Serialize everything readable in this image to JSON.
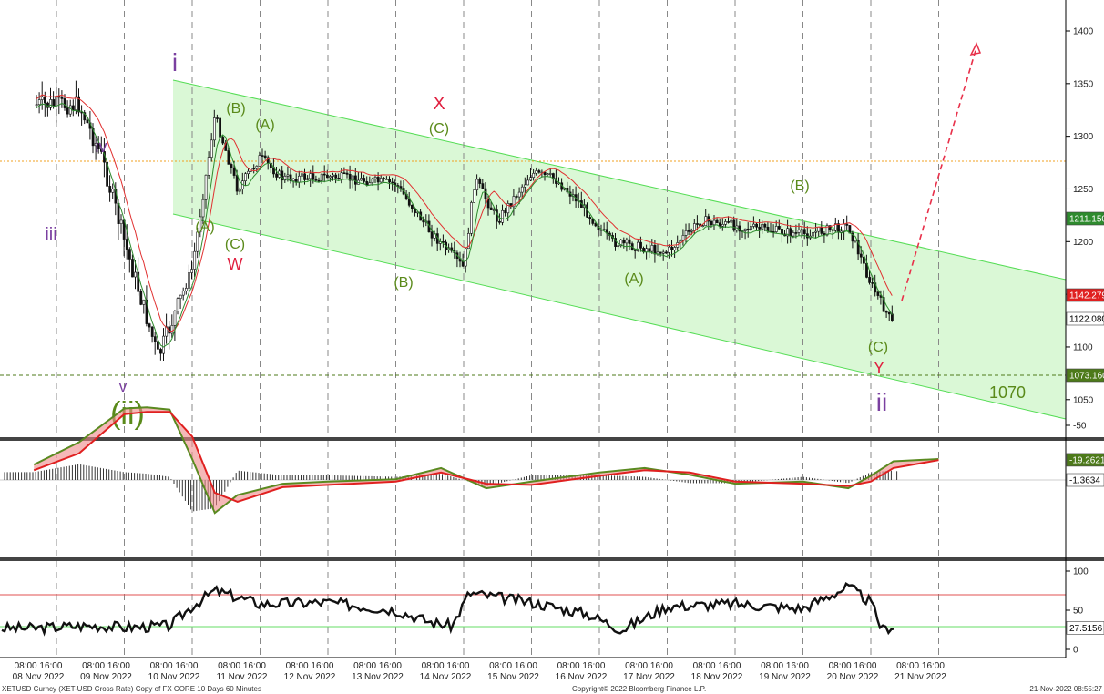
{
  "footer": {
    "left": "XETUSD Curncy (XET-USD Cross Rate) Copy of FX CORE 10 Days 60 Minutes",
    "center": "Copyright© 2022 Bloomberg Finance L.P.",
    "right": "21-Nov-2022 08:55:27"
  },
  "x_axis": {
    "time_labels": [
      "08:00 16:00",
      "08:00 16:00",
      "08:00 16:00",
      "08:00 16:00",
      "08:00 16:00",
      "08:00 16:00",
      "08:00 16:00",
      "08:00 16:00",
      "08:00 16:00",
      "08:00 16:00",
      "08:00 16:00",
      "08:00 16:00",
      "08:00 16:00",
      "08:00 16:00"
    ],
    "date_labels": [
      "08 Nov 2022",
      "09 Nov 2022",
      "10 Nov 2022",
      "11 Nov 2022",
      "12 Nov 2022",
      "13 Nov 2022",
      "14 Nov 2022",
      "15 Nov 2022",
      "16 Nov 2022",
      "17 Nov 2022",
      "18 Nov 2022",
      "19 Nov 2022",
      "20 Nov 2022",
      "21 Nov 2022"
    ]
  },
  "colors": {
    "channel_fill": "#d6f7d2",
    "channel_line": "#55dd55",
    "candle": "#111111",
    "ma_red": "#e03030",
    "ma_green": "#2e8b2e",
    "orange_level": "#f0a020",
    "support_level": "#4d7a1a",
    "wave_purple": "#7a3fa0",
    "wave_green": "#5a8a1a",
    "wave_red": "#e02040",
    "arrow": "#e8304a",
    "macd_red": "#e02020",
    "macd_green": "#5a8a20",
    "rsi_line": "#111111",
    "rsi_upper": "#e05050",
    "rsi_lower": "#66dd66"
  },
  "chart_data": [
    {
      "panel": "price",
      "type": "candlestick",
      "y_ticks": [
        1050,
        1100,
        1150,
        1200,
        1250,
        1300,
        1350,
        1400
      ],
      "ylim": [
        1015,
        1440
      ],
      "grid": "vertical dashed at 08:00 each day",
      "close_path": [
        {
          "x": "08 Nov 16:00",
          "y": 1330
        },
        {
          "x": "09 Nov 00:00",
          "y": 1280
        },
        {
          "x": "09 Nov 08:00",
          "y": 1200
        },
        {
          "x": "09 Nov 20:00",
          "y": 1090
        },
        {
          "x": "10 Nov 08:00",
          "y": 1175
        },
        {
          "x": "10 Nov 16:00",
          "y": 1320
        },
        {
          "x": "11 Nov 00:00",
          "y": 1250
        },
        {
          "x": "11 Nov 08:00",
          "y": 1280
        },
        {
          "x": "11 Nov 16:00",
          "y": 1260
        },
        {
          "x": "12 Nov 08:00",
          "y": 1262
        },
        {
          "x": "13 Nov 08:00",
          "y": 1255
        },
        {
          "x": "13 Nov 20:00",
          "y": 1210
        },
        {
          "x": "14 Nov 08:00",
          "y": 1175
        },
        {
          "x": "14 Nov 12:00",
          "y": 1260
        },
        {
          "x": "14 Nov 20:00",
          "y": 1220
        },
        {
          "x": "15 Nov 08:00",
          "y": 1265
        },
        {
          "x": "15 Nov 16:00",
          "y": 1260
        },
        {
          "x": "16 Nov 00:00",
          "y": 1240
        },
        {
          "x": "16 Nov 12:00",
          "y": 1200
        },
        {
          "x": "17 Nov 08:00",
          "y": 1190
        },
        {
          "x": "17 Nov 20:00",
          "y": 1220
        },
        {
          "x": "18 Nov 08:00",
          "y": 1215
        },
        {
          "x": "19 Nov 08:00",
          "y": 1207
        },
        {
          "x": "20 Nov 00:00",
          "y": 1215
        },
        {
          "x": "20 Nov 08:00",
          "y": 1160
        },
        {
          "x": "20 Nov 16:00",
          "y": 1120
        },
        {
          "x": "21 Nov 08:00",
          "y": 1122
        }
      ],
      "channel": {
        "upper": {
          "from": {
            "x": "10 Nov 16:00",
            "y": 1350
          },
          "to": {
            "x": "21 Nov 16:00",
            "y": 1155
          }
        },
        "lower": {
          "from": {
            "x": "10 Nov 16:00",
            "y": 1215
          },
          "to": {
            "x": "21 Nov 16:00",
            "y": 1035
          }
        }
      },
      "horizontal_levels": [
        {
          "y": 1268,
          "style": "dotted",
          "color": "orange"
        },
        {
          "y": 1073.16,
          "style": "dashed",
          "color": "green",
          "label": "1070"
        }
      ],
      "projection_arrow": {
        "from": {
          "x": "21 Nov 08:00",
          "y": 1140
        },
        "to": {
          "x": "21 Nov 16:00",
          "y": 1390
        }
      },
      "value_tags": [
        {
          "text": "1211.150",
          "y": 1211.15,
          "bg": "#2e8b2e",
          "fg": "#ffffff"
        },
        {
          "text": "1142.279",
          "y": 1142.279,
          "bg": "#e02020",
          "fg": "#ffffff"
        },
        {
          "text": "1122.080",
          "y": 1122.08,
          "bg": "#ffffff",
          "fg": "#000000"
        },
        {
          "text": "1073.160",
          "y": 1073.16,
          "bg": "#4d7a1a",
          "fg": "#ffffff"
        }
      ],
      "annotations": [
        {
          "text": "i",
          "color": "purple",
          "size": "large"
        },
        {
          "text": "iii",
          "color": "purple",
          "size": "medium"
        },
        {
          "text": "iv",
          "color": "purple",
          "size": "medium"
        },
        {
          "text": "v",
          "color": "purple",
          "size": "medium"
        },
        {
          "text": "(ii)",
          "color": "green",
          "size": "xlarge"
        },
        {
          "text": "(B)",
          "color": "green",
          "size": "medium"
        },
        {
          "text": "(A)",
          "color": "green",
          "size": "medium"
        },
        {
          "text": "(A)",
          "color": "green",
          "size": "medium"
        },
        {
          "text": "(C)",
          "color": "green",
          "size": "medium"
        },
        {
          "text": "W",
          "color": "red",
          "size": "medium"
        },
        {
          "text": "X",
          "color": "red",
          "size": "medium"
        },
        {
          "text": "(C)",
          "color": "green",
          "size": "medium"
        },
        {
          "text": "(B)",
          "color": "green",
          "size": "medium"
        },
        {
          "text": "(A)",
          "color": "green",
          "size": "medium"
        },
        {
          "text": "(B)",
          "color": "green",
          "size": "medium"
        },
        {
          "text": "(C)",
          "color": "green",
          "size": "medium"
        },
        {
          "text": "Y",
          "color": "red",
          "size": "medium"
        },
        {
          "text": "ii",
          "color": "purple",
          "size": "large"
        },
        {
          "text": "1070",
          "color": "green",
          "size": "large"
        }
      ]
    },
    {
      "panel": "macd",
      "type": "line",
      "y_ticks": [
        -50
      ],
      "ylim": [
        -90,
        45
      ],
      "series": [
        {
          "color": "red",
          "points": [
            {
              "x": "08 Nov 00:00",
              "y": -10
            },
            {
              "x": "08 Nov 16:00",
              "y": -25
            },
            {
              "x": "09 Nov 08:00",
              "y": -60
            },
            {
              "x": "09 Nov 16:00",
              "y": -62
            },
            {
              "x": "10 Nov 00:00",
              "y": -62
            },
            {
              "x": "10 Nov 08:00",
              "y": -40
            },
            {
              "x": "10 Nov 16:00",
              "y": 10
            },
            {
              "x": "11 Nov 00:00",
              "y": 18
            },
            {
              "x": "11 Nov 16:00",
              "y": 5
            },
            {
              "x": "12 Nov 08:00",
              "y": 3
            },
            {
              "x": "13 Nov 08:00",
              "y": 0
            },
            {
              "x": "14 Nov 00:00",
              "y": -8
            },
            {
              "x": "14 Nov 16:00",
              "y": 2
            },
            {
              "x": "15 Nov 08:00",
              "y": 3
            },
            {
              "x": "16 Nov 08:00",
              "y": -5
            },
            {
              "x": "17 Nov 00:00",
              "y": -10
            },
            {
              "x": "17 Nov 16:00",
              "y": -8
            },
            {
              "x": "18 Nov 08:00",
              "y": 0
            },
            {
              "x": "19 Nov 08:00",
              "y": 2
            },
            {
              "x": "20 Nov 00:00",
              "y": 4
            },
            {
              "x": "20 Nov 08:00",
              "y": 0
            },
            {
              "x": "20 Nov 16:00",
              "y": -12
            },
            {
              "x": "21 Nov 08:00",
              "y": -19
            }
          ]
        },
        {
          "color": "green",
          "points": [
            {
              "x": "08 Nov 00:00",
              "y": -15
            },
            {
              "x": "08 Nov 16:00",
              "y": -35
            },
            {
              "x": "09 Nov 08:00",
              "y": -65
            },
            {
              "x": "09 Nov 16:00",
              "y": -66
            },
            {
              "x": "10 Nov 00:00",
              "y": -64
            },
            {
              "x": "10 Nov 08:00",
              "y": -20
            },
            {
              "x": "10 Nov 16:00",
              "y": 28
            },
            {
              "x": "11 Nov 00:00",
              "y": 12
            },
            {
              "x": "11 Nov 16:00",
              "y": 2
            },
            {
              "x": "12 Nov 08:00",
              "y": 0
            },
            {
              "x": "13 Nov 08:00",
              "y": -2
            },
            {
              "x": "14 Nov 00:00",
              "y": -12
            },
            {
              "x": "14 Nov 16:00",
              "y": 6
            },
            {
              "x": "15 Nov 08:00",
              "y": 0
            },
            {
              "x": "16 Nov 08:00",
              "y": -8
            },
            {
              "x": "17 Nov 00:00",
              "y": -12
            },
            {
              "x": "17 Nov 16:00",
              "y": -6
            },
            {
              "x": "18 Nov 08:00",
              "y": 2
            },
            {
              "x": "19 Nov 08:00",
              "y": 0
            },
            {
              "x": "20 Nov 00:00",
              "y": 6
            },
            {
              "x": "20 Nov 08:00",
              "y": -5
            },
            {
              "x": "20 Nov 16:00",
              "y": -18
            },
            {
              "x": "21 Nov 08:00",
              "y": -20
            }
          ]
        }
      ],
      "value_tags": [
        {
          "text": "-1.3634",
          "y": -1.3634,
          "bg": "#ffffff",
          "fg": "#000000"
        },
        {
          "text": "-19.2621",
          "y": -19.2621,
          "bg": "#4d7a1a",
          "fg": "#ffffff"
        }
      ]
    },
    {
      "panel": "rsi",
      "type": "line",
      "y_ticks": [
        0,
        50,
        100
      ],
      "ylim": [
        -10,
        110
      ],
      "levels": [
        70,
        27.5156
      ],
      "series": [
        {
          "color": "black",
          "points": [
            {
              "x": "08 Nov 00:00",
              "y": 27
            },
            {
              "x": "08 Nov 16:00",
              "y": 30
            },
            {
              "x": "09 Nov 00:00",
              "y": 30
            },
            {
              "x": "09 Nov 08:00",
              "y": 28
            },
            {
              "x": "10 Nov 00:00",
              "y": 30
            },
            {
              "x": "10 Nov 08:00",
              "y": 55
            },
            {
              "x": "10 Nov 16:00",
              "y": 75
            },
            {
              "x": "11 Nov 08:00",
              "y": 58
            },
            {
              "x": "12 Nov 08:00",
              "y": 60
            },
            {
              "x": "13 Nov 08:00",
              "y": 50
            },
            {
              "x": "13 Nov 20:00",
              "y": 35
            },
            {
              "x": "14 Nov 04:00",
              "y": 30
            },
            {
              "x": "14 Nov 10:00",
              "y": 72
            },
            {
              "x": "15 Nov 08:00",
              "y": 60
            },
            {
              "x": "16 Nov 04:00",
              "y": 45
            },
            {
              "x": "16 Nov 16:00",
              "y": 25
            },
            {
              "x": "17 Nov 08:00",
              "y": 55
            },
            {
              "x": "18 Nov 08:00",
              "y": 58
            },
            {
              "x": "19 Nov 08:00",
              "y": 52
            },
            {
              "x": "20 Nov 00:00",
              "y": 80
            },
            {
              "x": "20 Nov 08:00",
              "y": 60
            },
            {
              "x": "20 Nov 12:00",
              "y": 25
            },
            {
              "x": "20 Nov 20:00",
              "y": 35
            },
            {
              "x": "21 Nov 04:00",
              "y": 18
            },
            {
              "x": "21 Nov 08:00",
              "y": 27.5
            }
          ]
        }
      ],
      "value_tags": [
        {
          "text": "27.5156",
          "y": 27.5156,
          "bg": "#ffffff",
          "fg": "#000000"
        }
      ]
    }
  ]
}
